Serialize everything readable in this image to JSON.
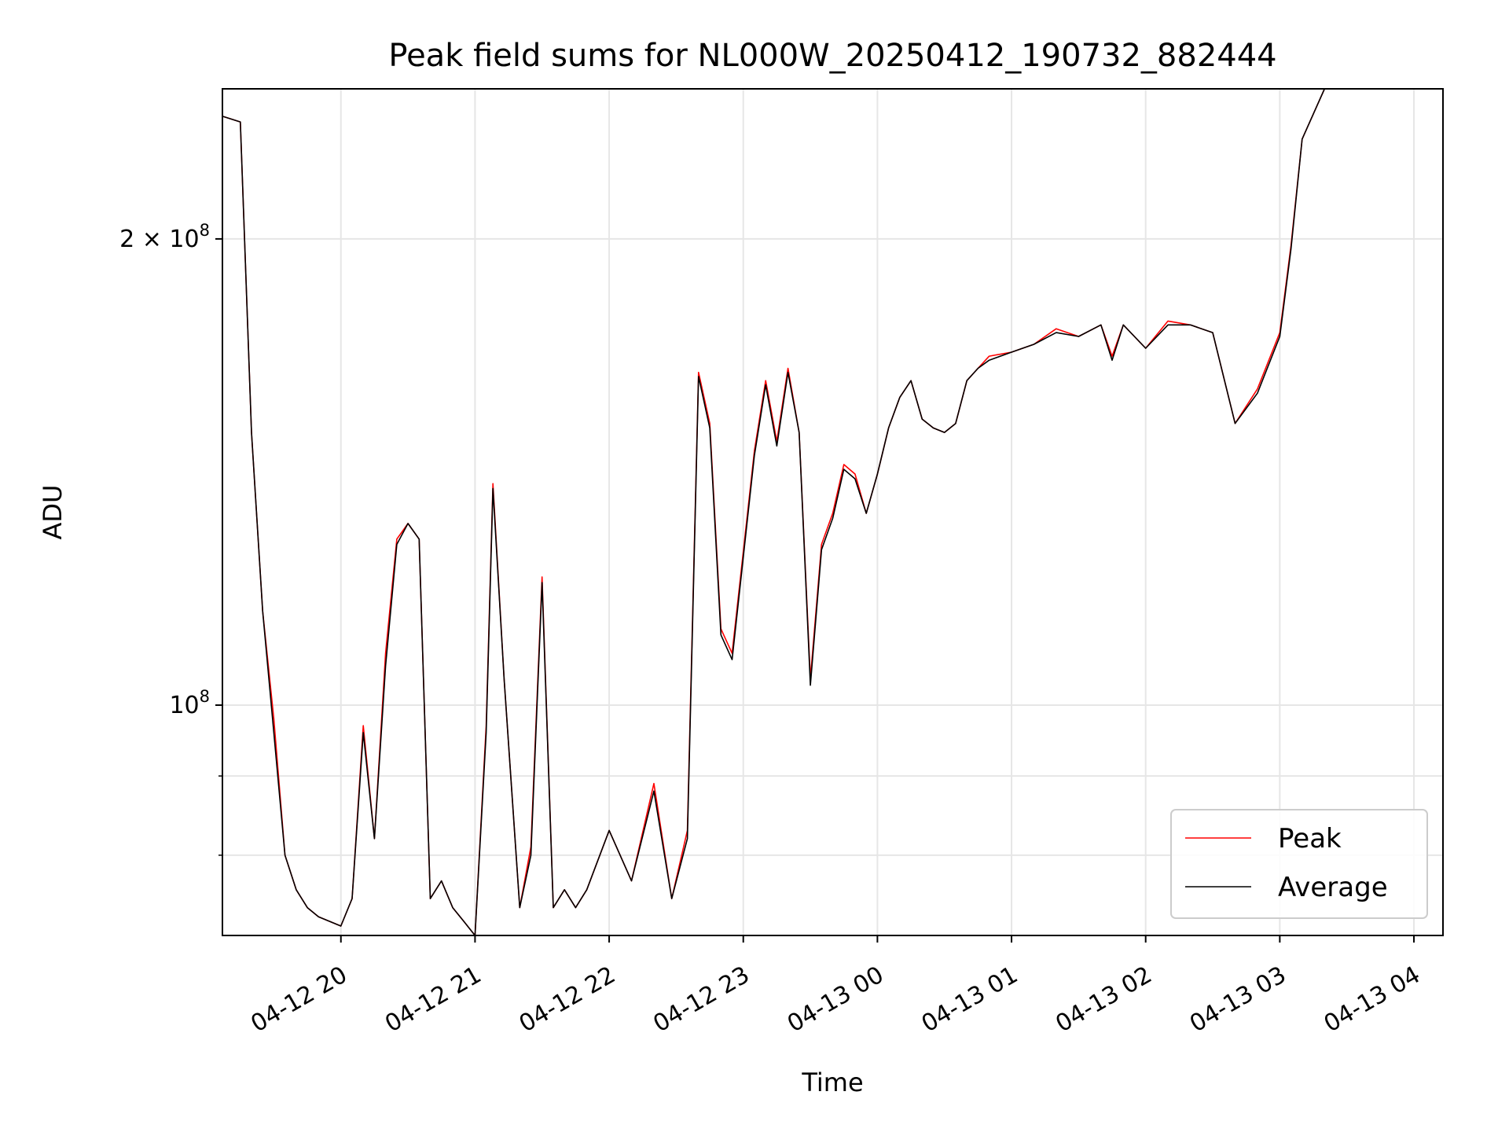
{
  "chart_data": {
    "type": "line",
    "title": "Peak field sums for NL000W_20250412_190732_882444",
    "xlabel": "Time",
    "ylabel": "ADU",
    "yscale": "log",
    "ylim": [
      71000000,
      250000000
    ],
    "xlim": [
      "2025-04-12 19:07",
      "2025-04-13 04:13"
    ],
    "grid": true,
    "legend_position": "lower-right",
    "x_ticks": [
      "2025-04-12 20:00",
      "2025-04-12 21:00",
      "2025-04-12 22:00",
      "2025-04-12 23:00",
      "2025-04-13 00:00",
      "2025-04-13 01:00",
      "2025-04-13 02:00",
      "2025-04-13 03:00",
      "2025-04-13 04:00"
    ],
    "x_tick_labels": [
      "04-12 20",
      "04-12 21",
      "04-12 22",
      "04-12 23",
      "04-13 00",
      "04-13 01",
      "04-13 02",
      "04-13 03",
      "04-13 04"
    ],
    "y_ticks_major": [
      {
        "value": 100000000,
        "label": "10^8"
      },
      {
        "value": 200000000,
        "label": "2 × 10^8"
      }
    ],
    "y_ticks_minor": [
      80000000,
      90000000
    ],
    "x": [
      "2025-04-12 19:07",
      "2025-04-12 19:15",
      "2025-04-12 19:20",
      "2025-04-12 19:25",
      "2025-04-12 19:30",
      "2025-04-12 19:35",
      "2025-04-12 19:40",
      "2025-04-12 19:45",
      "2025-04-12 19:50",
      "2025-04-12 20:00",
      "2025-04-12 20:05",
      "2025-04-12 20:10",
      "2025-04-12 20:15",
      "2025-04-12 20:20",
      "2025-04-12 20:25",
      "2025-04-12 20:30",
      "2025-04-12 20:35",
      "2025-04-12 20:40",
      "2025-04-12 20:45",
      "2025-04-12 20:50",
      "2025-04-12 20:55",
      "2025-04-12 21:00",
      "2025-04-12 21:05",
      "2025-04-12 21:08",
      "2025-04-12 21:13",
      "2025-04-12 21:20",
      "2025-04-12 21:25",
      "2025-04-12 21:30",
      "2025-04-12 21:35",
      "2025-04-12 21:40",
      "2025-04-12 21:45",
      "2025-04-12 21:50",
      "2025-04-12 22:00",
      "2025-04-12 22:10",
      "2025-04-12 22:20",
      "2025-04-12 22:28",
      "2025-04-12 22:35",
      "2025-04-12 22:40",
      "2025-04-12 22:45",
      "2025-04-12 22:50",
      "2025-04-12 22:55",
      "2025-04-12 23:05",
      "2025-04-12 23:10",
      "2025-04-12 23:15",
      "2025-04-12 23:20",
      "2025-04-12 23:25",
      "2025-04-12 23:30",
      "2025-04-12 23:35",
      "2025-04-12 23:40",
      "2025-04-12 23:45",
      "2025-04-12 23:50",
      "2025-04-12 23:55",
      "2025-04-13 00:00",
      "2025-04-13 00:05",
      "2025-04-13 00:10",
      "2025-04-13 00:15",
      "2025-04-13 00:20",
      "2025-04-13 00:25",
      "2025-04-13 00:30",
      "2025-04-13 00:35",
      "2025-04-13 00:40",
      "2025-04-13 00:45",
      "2025-04-13 00:50",
      "2025-04-13 01:00",
      "2025-04-13 01:10",
      "2025-04-13 01:20",
      "2025-04-13 01:30",
      "2025-04-13 01:40",
      "2025-04-13 01:45",
      "2025-04-13 01:50",
      "2025-04-13 02:00",
      "2025-04-13 02:10",
      "2025-04-13 02:20",
      "2025-04-13 02:30",
      "2025-04-13 02:40",
      "2025-04-13 02:50",
      "2025-04-13 03:00",
      "2025-04-13 03:05",
      "2025-04-13 03:10",
      "2025-04-13 03:20",
      "2025-04-13 03:30",
      "2025-04-13 03:35",
      "2025-04-13 03:40",
      "2025-04-13 03:45",
      "2025-04-13 03:50",
      "2025-04-13 03:55",
      "2025-04-13 04:00",
      "2025-04-13 04:05",
      "2025-04-13 04:10",
      "2025-04-13 04:13"
    ],
    "series": [
      {
        "name": "Peak",
        "color": "#ff0000",
        "values": [
          240000000,
          238000000,
          150000000,
          115000000,
          98000000,
          80000000,
          76000000,
          74000000,
          73000000,
          72000000,
          75000000,
          97000000,
          82000000,
          108000000,
          128000000,
          131000000,
          128000000,
          75000000,
          77000000,
          74000000,
          72500000,
          70500000,
          97000000,
          139000000,
          104000000,
          74000000,
          81000000,
          121000000,
          74000000,
          76000000,
          74000000,
          76000000,
          83000000,
          77000000,
          89000000,
          75000000,
          83000000,
          164000000,
          152000000,
          112000000,
          108000000,
          146000000,
          162000000,
          148000000,
          165000000,
          150000000,
          104000000,
          127000000,
          133000000,
          143000000,
          141000000,
          133000000,
          141000000,
          151000000,
          158000000,
          162000000,
          153000000,
          151000000,
          150000000,
          152000000,
          162000000,
          165000000,
          168000000,
          169000000,
          171000000,
          175000000,
          173000000,
          176000000,
          168000000,
          176000000,
          170000000,
          177000000,
          176000000,
          174000000,
          152000000,
          160000000,
          174000000,
          198000000,
          232000000,
          250000000,
          250000000,
          250000000,
          250000000,
          250000000,
          250000000,
          250000000,
          250000000,
          250000000,
          250000000,
          250000000
        ]
      },
      {
        "name": "Average",
        "color": "#000000",
        "values": [
          240000000,
          238000000,
          150000000,
          115000000,
          96000000,
          80000000,
          76000000,
          74000000,
          73000000,
          72000000,
          75000000,
          96000000,
          82000000,
          106000000,
          127000000,
          131000000,
          128000000,
          75000000,
          77000000,
          74000000,
          72500000,
          70500000,
          96000000,
          138000000,
          104000000,
          74000000,
          80000000,
          120000000,
          74000000,
          76000000,
          74000000,
          76000000,
          83000000,
          77000000,
          88000000,
          75000000,
          82000000,
          163000000,
          151000000,
          111000000,
          107000000,
          145000000,
          161000000,
          147000000,
          164000000,
          150000000,
          103000000,
          126000000,
          132000000,
          142000000,
          140000000,
          133000000,
          141000000,
          151000000,
          158000000,
          162000000,
          153000000,
          151000000,
          150000000,
          152000000,
          162000000,
          165000000,
          167000000,
          169000000,
          171000000,
          174000000,
          173000000,
          176000000,
          167000000,
          176000000,
          170000000,
          176000000,
          176000000,
          174000000,
          152000000,
          159000000,
          173000000,
          197000000,
          232000000,
          250000000,
          250000000,
          250000000,
          250000000,
          250000000,
          250000000,
          250000000,
          250000000,
          250000000,
          250000000,
          250000000
        ]
      }
    ]
  }
}
